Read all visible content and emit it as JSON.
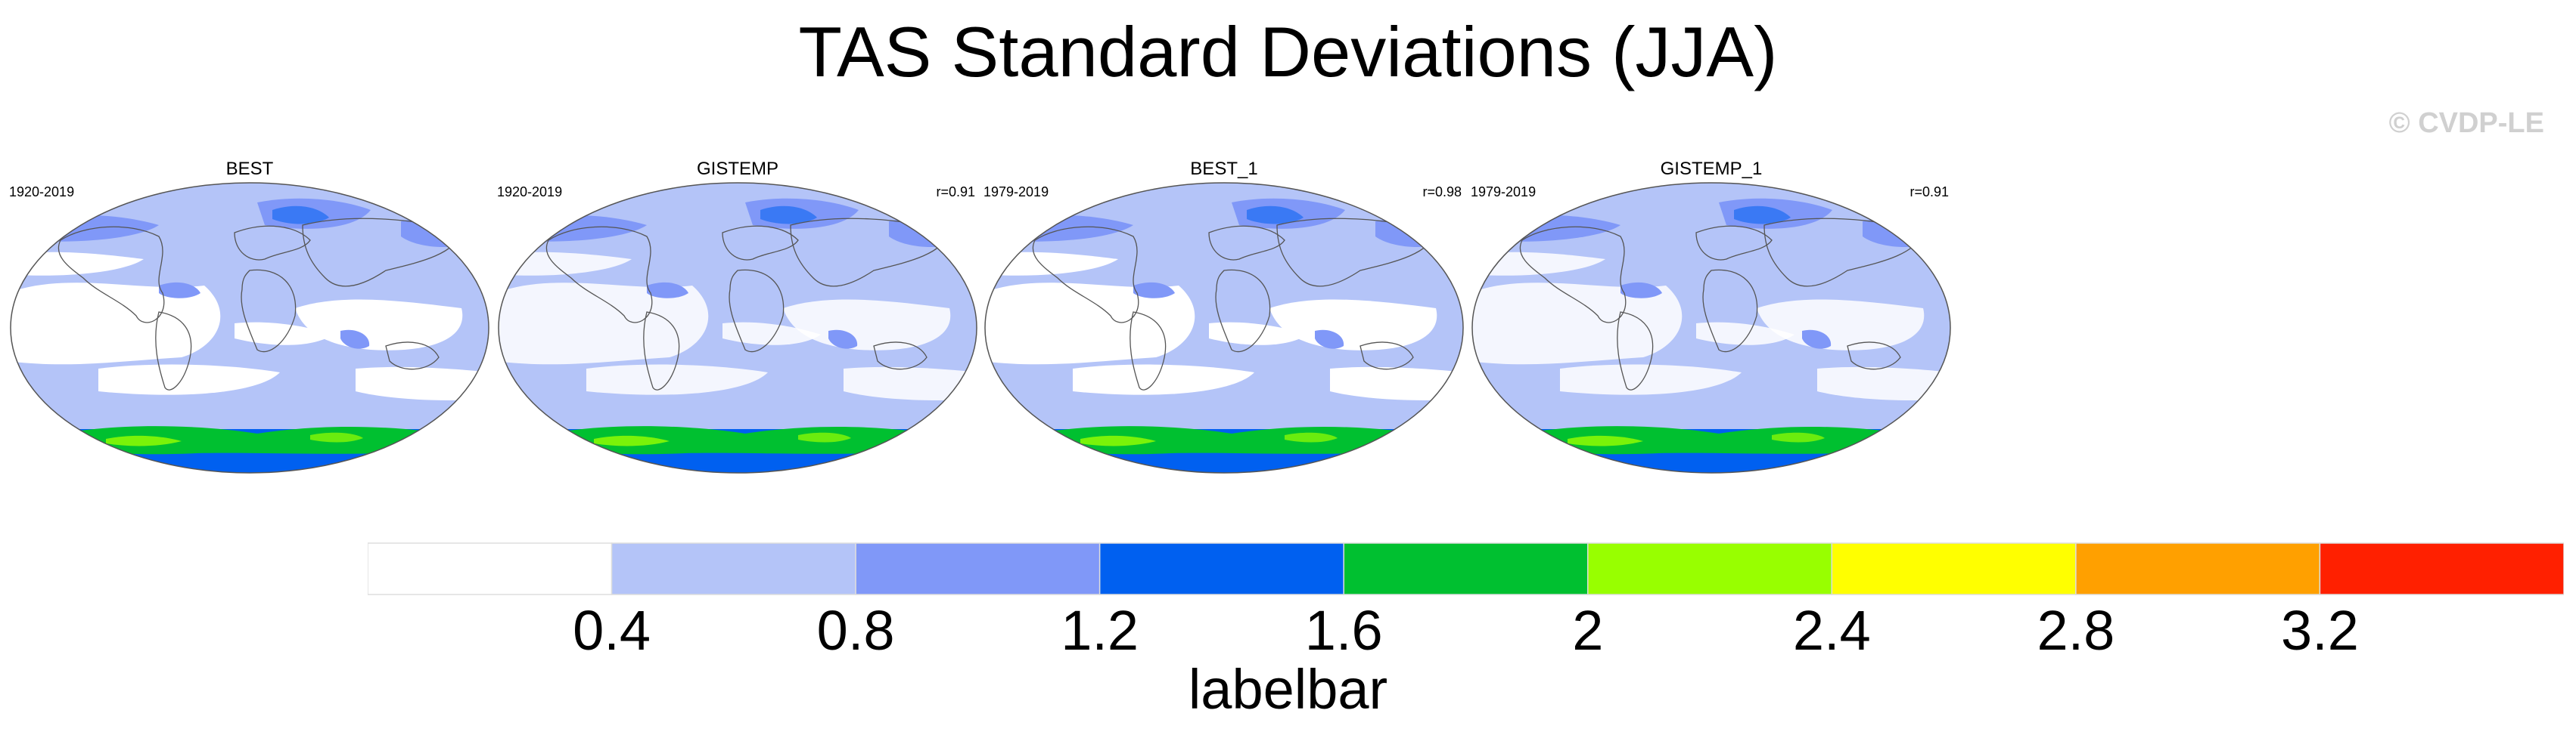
{
  "title": "TAS Standard Deviations (JJA)",
  "copyright": "© CVDP-LE",
  "panels": [
    {
      "name": "BEST",
      "period": "1920-2019",
      "corr": ""
    },
    {
      "name": "GISTEMP",
      "period": "1920-2019",
      "corr": "r=0.91"
    },
    {
      "name": "BEST_1",
      "period": "1979-2019",
      "corr": "r=0.98"
    },
    {
      "name": "GISTEMP_1",
      "period": "1979-2019",
      "corr": "r=0.91"
    }
  ],
  "map_colors": {
    "land_outline": "#555555",
    "low": "#b4c4f8",
    "mid": "#8098f8",
    "high": "#0060f0",
    "green": "#00c030",
    "lime": "#98ff00",
    "yellow": "#ffff00"
  },
  "labelbar": {
    "title": "labelbar",
    "colors": [
      "#ffffff",
      "#b4c4f8",
      "#8098f8",
      "#0060f0",
      "#00c030",
      "#98ff00",
      "#ffff00",
      "#ffa000",
      "#ff2000"
    ],
    "labels": [
      "0.4",
      "0.8",
      "1.2",
      "1.6",
      "2",
      "2.4",
      "2.8",
      "3.2"
    ]
  }
}
